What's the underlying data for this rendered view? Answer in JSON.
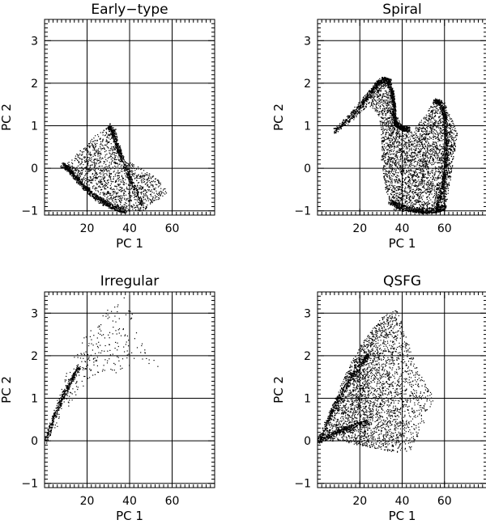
{
  "chart_data": [
    {
      "type": "scatter",
      "title": "Early−type",
      "xlabel": "PC 1",
      "ylabel": "PC 2",
      "xlim": [
        0,
        80
      ],
      "ylim": [
        -1.1,
        3.5
      ],
      "xticks": [
        "20",
        "40",
        "60"
      ],
      "yticks": [
        "−1",
        "0",
        "1",
        "2",
        "3"
      ],
      "grid": true,
      "marker_color": "#000000",
      "boundary": [
        [
          8,
          0.1
        ],
        [
          14,
          -0.2
        ],
        [
          20,
          -0.5
        ],
        [
          28,
          -0.8
        ],
        [
          38,
          -1.0
        ],
        [
          46,
          -1.0
        ],
        [
          58,
          -0.55
        ],
        [
          52,
          -0.2
        ],
        [
          44,
          0.05
        ],
        [
          38,
          0.2
        ],
        [
          36,
          0.45
        ],
        [
          33,
          1.0
        ],
        [
          30,
          1.0
        ],
        [
          24,
          0.8
        ],
        [
          17,
          0.45
        ],
        [
          11,
          0.15
        ]
      ],
      "ridges": [
        {
          "x": [
            8,
            11,
            14,
            18,
            22,
            27,
            32,
            38
          ],
          "y": [
            0.1,
            0.0,
            -0.18,
            -0.4,
            -0.6,
            -0.78,
            -0.9,
            -1.0
          ]
        },
        {
          "x": [
            30,
            32,
            34,
            36,
            40,
            46
          ],
          "y": [
            1.0,
            0.85,
            0.55,
            0.25,
            -0.25,
            -0.85
          ]
        }
      ]
    },
    {
      "type": "scatter",
      "title": "Spiral",
      "xlabel": "PC 1",
      "ylabel": "PC 2",
      "xlim": [
        0,
        80
      ],
      "ylim": [
        -1.1,
        3.5
      ],
      "xticks": [
        "20",
        "40",
        "60"
      ],
      "yticks": [
        "−1",
        "0",
        "1",
        "2",
        "3"
      ],
      "grid": true,
      "marker_color": "#000000",
      "boundary": [
        [
          26,
          1.9
        ],
        [
          31,
          2.15
        ],
        [
          35,
          2.0
        ],
        [
          37,
          1.3
        ],
        [
          40,
          0.95
        ],
        [
          44,
          0.9
        ],
        [
          50,
          1.2
        ],
        [
          55,
          1.6
        ],
        [
          60,
          1.55
        ],
        [
          63,
          1.2
        ],
        [
          66,
          0.8
        ],
        [
          64,
          0.2
        ],
        [
          62,
          -0.5
        ],
        [
          60,
          -1.0
        ],
        [
          50,
          -1.05
        ],
        [
          36,
          -1.0
        ],
        [
          32,
          -0.5
        ],
        [
          30,
          0.2
        ],
        [
          30,
          0.9
        ],
        [
          28,
          1.3
        ],
        [
          24,
          1.5
        ],
        [
          18,
          1.2
        ],
        [
          12,
          0.95
        ]
      ],
      "ridges": [
        {
          "x": [
            8,
            14,
            20,
            25,
            28,
            31,
            34
          ],
          "y": [
            0.88,
            1.15,
            1.5,
            1.8,
            2.0,
            2.1,
            2.05
          ]
        },
        {
          "x": [
            33,
            35,
            36,
            36,
            37,
            40,
            43
          ],
          "y": [
            2.05,
            1.8,
            1.5,
            1.2,
            1.05,
            0.95,
            0.92
          ]
        },
        {
          "x": [
            55,
            58,
            60,
            61,
            60,
            58,
            56
          ],
          "y": [
            1.6,
            1.55,
            1.2,
            0.6,
            -0.1,
            -0.6,
            -0.95
          ]
        },
        {
          "x": [
            34,
            38,
            44,
            50,
            56,
            60
          ],
          "y": [
            -0.78,
            -0.88,
            -0.95,
            -1.0,
            -0.98,
            -0.9
          ]
        }
      ]
    },
    {
      "type": "scatter",
      "title": "Irregular",
      "xlabel": "PC 1",
      "ylabel": "PC 2",
      "xlim": [
        0,
        80
      ],
      "ylim": [
        -1.1,
        3.5
      ],
      "xticks": [
        "20",
        "40",
        "60"
      ],
      "yticks": [
        "−1",
        "0",
        "1",
        "2",
        "3"
      ],
      "grid": true,
      "marker_color": "#000000",
      "boundary": [
        [
          0.5,
          0.0
        ],
        [
          5,
          0.85
        ],
        [
          10,
          1.6
        ],
        [
          15,
          2.1
        ],
        [
          20,
          2.6
        ],
        [
          26,
          2.95
        ],
        [
          32,
          3.3
        ],
        [
          40,
          3.45
        ],
        [
          43,
          2.6
        ],
        [
          48,
          2.05
        ],
        [
          57,
          1.65
        ],
        [
          45,
          1.75
        ],
        [
          38,
          1.6
        ],
        [
          30,
          1.6
        ],
        [
          22,
          1.5
        ],
        [
          14,
          1.0
        ],
        [
          8,
          0.5
        ],
        [
          3,
          0.15
        ]
      ],
      "ridges": [
        {
          "x": [
            0.5,
            4,
            8,
            12,
            16
          ],
          "y": [
            0.0,
            0.55,
            1.0,
            1.4,
            1.75
          ]
        }
      ]
    },
    {
      "type": "scatter",
      "title": "QSFG",
      "xlabel": "PC 1",
      "ylabel": "PC 2",
      "xlim": [
        0,
        80
      ],
      "ylim": [
        -1.1,
        3.5
      ],
      "xticks": [
        "20",
        "40",
        "60"
      ],
      "yticks": [
        "−1",
        "0",
        "1",
        "2",
        "3"
      ],
      "grid": true,
      "marker_color": "#000000",
      "boundary": [
        [
          0.5,
          0.0
        ],
        [
          8,
          1.0
        ],
        [
          15,
          1.8
        ],
        [
          22,
          2.4
        ],
        [
          30,
          2.9
        ],
        [
          38,
          3.15
        ],
        [
          42,
          2.4
        ],
        [
          48,
          1.6
        ],
        [
          55,
          1.0
        ],
        [
          50,
          0.4
        ],
        [
          44,
          -0.2
        ],
        [
          40,
          -0.3
        ],
        [
          30,
          -0.2
        ],
        [
          20,
          -0.1
        ],
        [
          10,
          0.0
        ],
        [
          3,
          0.0
        ]
      ],
      "ridges": [
        {
          "x": [
            0.5,
            6,
            12,
            18,
            24
          ],
          "y": [
            0.0,
            0.65,
            1.2,
            1.65,
            2.05
          ]
        },
        {
          "x": [
            0.5,
            8,
            16,
            24
          ],
          "y": [
            0.0,
            0.2,
            0.35,
            0.45
          ]
        }
      ]
    }
  ]
}
